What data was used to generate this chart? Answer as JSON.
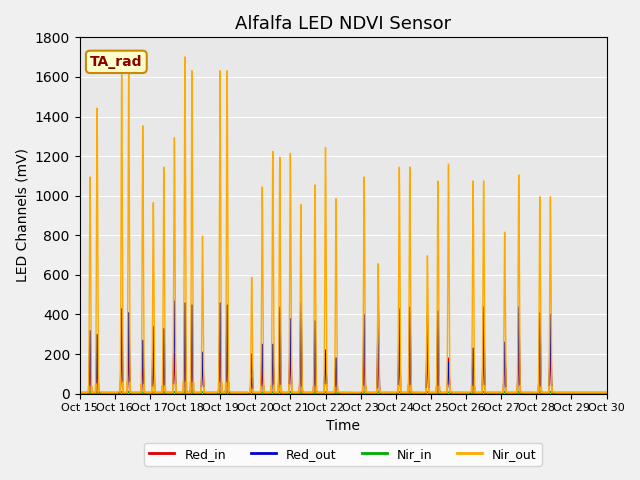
{
  "title": "Alfalfa LED NDVI Sensor",
  "xlabel": "Time",
  "ylabel": "LED Channels (mV)",
  "ylim": [
    0,
    1800
  ],
  "background_color": "#f0f0f0",
  "plot_bg_color": "#e8e8e8",
  "legend_label": "TA_rad",
  "x_tick_positions": [
    0,
    1,
    2,
    3,
    4,
    5,
    6,
    7,
    8,
    9,
    10,
    11,
    12,
    13,
    14,
    15
  ],
  "x_tick_labels": [
    "Oct 15",
    "Oct 16",
    "Oct 17",
    "Oct 18",
    "Oct 19",
    "Oct 20",
    "Oct 21",
    "Oct 22",
    "Oct 23",
    "Oct 24",
    "Oct 25",
    "Oct 26",
    "Oct 27",
    "Oct 28",
    "Oct 29",
    "Oct 30"
  ],
  "y_ticks": [
    0,
    200,
    400,
    600,
    800,
    1000,
    1200,
    1400,
    1600,
    1800
  ],
  "colors": {
    "Red_in": "#dd0000",
    "Red_out": "#0000cc",
    "Nir_in": "#00aa00",
    "Nir_out": "#ffaa00"
  },
  "spike_events": [
    [
      0.3,
      170,
      320,
      8,
      1100
    ],
    [
      0.5,
      150,
      300,
      8,
      1450
    ],
    [
      1.2,
      250,
      430,
      10,
      1620
    ],
    [
      1.4,
      220,
      410,
      10,
      1640
    ],
    [
      1.8,
      180,
      270,
      8,
      1360
    ],
    [
      2.1,
      160,
      340,
      8,
      970
    ],
    [
      2.4,
      210,
      330,
      9,
      1150
    ],
    [
      2.7,
      200,
      470,
      10,
      1300
    ],
    [
      3.0,
      280,
      460,
      10,
      1710
    ],
    [
      3.2,
      270,
      450,
      10,
      1640
    ],
    [
      3.5,
      200,
      210,
      9,
      800
    ],
    [
      4.0,
      280,
      460,
      10,
      1640
    ],
    [
      4.2,
      260,
      450,
      10,
      1640
    ],
    [
      4.9,
      80,
      200,
      8,
      590
    ],
    [
      5.2,
      130,
      250,
      8,
      1050
    ],
    [
      5.5,
      220,
      250,
      9,
      1230
    ],
    [
      5.7,
      240,
      440,
      10,
      1200
    ],
    [
      6.0,
      210,
      380,
      10,
      1220
    ],
    [
      6.3,
      260,
      460,
      10,
      960
    ],
    [
      6.7,
      220,
      370,
      10,
      1060
    ],
    [
      7.0,
      220,
      220,
      9,
      1250
    ],
    [
      7.3,
      180,
      180,
      8,
      990
    ],
    [
      8.1,
      210,
      400,
      9,
      1100
    ],
    [
      8.5,
      200,
      440,
      10,
      660
    ],
    [
      9.1,
      220,
      430,
      9,
      1150
    ],
    [
      9.4,
      250,
      440,
      10,
      1150
    ],
    [
      9.9,
      200,
      400,
      9,
      700
    ],
    [
      10.2,
      230,
      420,
      10,
      1080
    ],
    [
      10.5,
      180,
      160,
      8,
      1165
    ],
    [
      11.2,
      230,
      230,
      9,
      1080
    ],
    [
      11.5,
      220,
      440,
      10,
      1080
    ],
    [
      12.1,
      260,
      260,
      10,
      820
    ],
    [
      12.5,
      240,
      440,
      10,
      1110
    ],
    [
      13.1,
      250,
      410,
      10,
      1000
    ],
    [
      13.4,
      230,
      400,
      10,
      1000
    ]
  ]
}
